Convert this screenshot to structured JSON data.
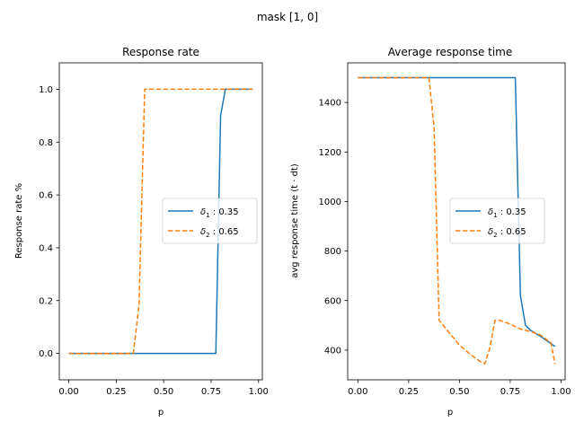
{
  "figure": {
    "title": "mask [1, 0]"
  },
  "chart_data": [
    {
      "type": "line",
      "title": "Response rate",
      "xlabel": "p",
      "ylabel": "Response rate %",
      "xlim": [
        -0.05,
        1.02
      ],
      "ylim": [
        -0.1,
        1.1
      ],
      "xticks": [
        0.0,
        0.25,
        0.5,
        0.75,
        1.0
      ],
      "xtick_labels": [
        "0.00",
        "0.25",
        "0.50",
        "0.75",
        "1.00"
      ],
      "yticks": [
        0.0,
        0.2,
        0.4,
        0.6,
        0.8,
        1.0
      ],
      "ytick_labels": [
        "0.0",
        "0.2",
        "0.4",
        "0.6",
        "0.8",
        "1.0"
      ],
      "grid": false,
      "legend_placement": "center-right",
      "series": [
        {
          "name": "δ1 : 0.35",
          "color": "#1f77b4",
          "linestyle": "solid",
          "x": [
            0.0,
            0.775,
            0.8,
            0.825,
            0.97
          ],
          "y": [
            0.0,
            0.0,
            0.9,
            1.0,
            1.0
          ]
        },
        {
          "name": "δ2 : 0.65",
          "color": "#ff7f0e",
          "linestyle": "dashed",
          "x": [
            0.0,
            0.34,
            0.37,
            0.4,
            0.97
          ],
          "y": [
            0.0,
            0.0,
            0.18,
            1.0,
            1.0
          ]
        }
      ]
    },
    {
      "type": "line",
      "title": "Average response time",
      "xlabel": "p",
      "ylabel": "avg response time (t · dt)",
      "xlim": [
        -0.05,
        1.02
      ],
      "ylim": [
        280,
        1560
      ],
      "xticks": [
        0.0,
        0.25,
        0.5,
        0.75,
        1.0
      ],
      "xtick_labels": [
        "0.00",
        "0.25",
        "0.50",
        "0.75",
        "1.00"
      ],
      "yticks": [
        400,
        600,
        800,
        1000,
        1200,
        1400
      ],
      "ytick_labels": [
        "400",
        "600",
        "800",
        "1000",
        "1200",
        "1400"
      ],
      "grid": false,
      "legend_placement": "center-right",
      "series": [
        {
          "name": "δ1 : 0.35",
          "color": "#1f77b4",
          "linestyle": "solid",
          "x": [
            0.0,
            0.775,
            0.8,
            0.825,
            0.85,
            0.9,
            0.97
          ],
          "y": [
            1500,
            1500,
            620,
            500,
            480,
            455,
            415
          ]
        },
        {
          "name": "δ2 : 0.65",
          "color": "#ff7f0e",
          "linestyle": "dashed",
          "x": [
            0.0,
            0.35,
            0.375,
            0.4,
            0.45,
            0.5,
            0.55,
            0.6,
            0.625,
            0.65,
            0.675,
            0.7,
            0.75,
            0.8,
            0.85,
            0.9,
            0.95,
            0.97
          ],
          "y": [
            1500,
            1500,
            1300,
            520,
            470,
            420,
            385,
            355,
            345,
            410,
            520,
            520,
            505,
            485,
            475,
            460,
            430,
            345
          ]
        }
      ]
    }
  ]
}
